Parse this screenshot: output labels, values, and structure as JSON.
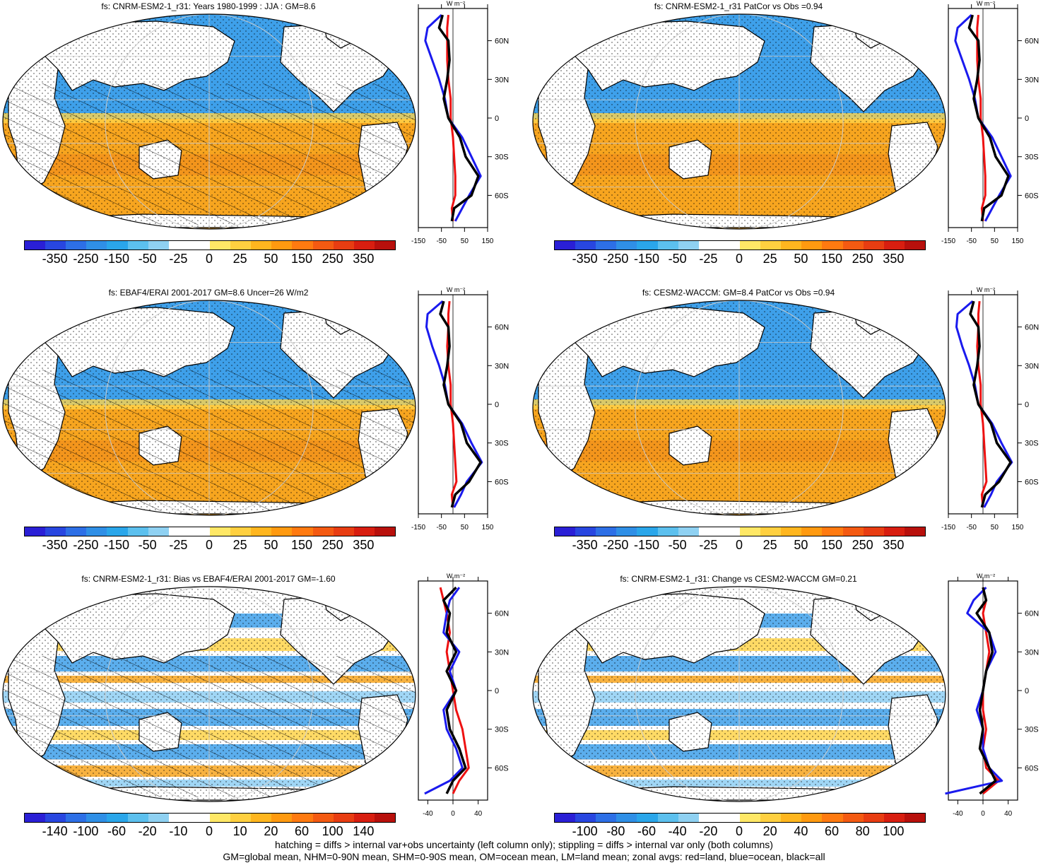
{
  "panels": [
    {
      "title": "fs: CNRM-ESM2-1_r31: Years 1980-1999 : JJA : GM=8.6",
      "cbar_labels": [
        "-350",
        "-250",
        "-150",
        "-50",
        "-25",
        "0",
        "25",
        "50",
        "150",
        "250",
        "350"
      ],
      "zonal_x_ticks": [
        "-150",
        "-50",
        "50",
        "150"
      ],
      "zonal_lat_ticks": [
        "60N",
        "30N",
        "0",
        "30S",
        "60S"
      ],
      "zonal_unit": "W m⁻²",
      "hatching": true,
      "pattern": "mean"
    },
    {
      "title": "fs: CNRM-ESM2-1_r31 PatCor vs Obs =0.94",
      "cbar_labels": [
        "-350",
        "-250",
        "-150",
        "-50",
        "-25",
        "0",
        "25",
        "50",
        "150",
        "250",
        "350"
      ],
      "zonal_x_ticks": [
        "-150",
        "-50",
        "50",
        "150"
      ],
      "zonal_lat_ticks": [
        "60N",
        "30N",
        "0",
        "30S",
        "60S"
      ],
      "zonal_unit": "W m⁻²",
      "hatching": false,
      "pattern": "mean"
    },
    {
      "title": "fs: EBAF4/ERAI 2001-2017 GM=8.6 Uncer=26 W/m2",
      "cbar_labels": [
        "-350",
        "-250",
        "-150",
        "-50",
        "-25",
        "0",
        "25",
        "50",
        "150",
        "250",
        "350"
      ],
      "zonal_x_ticks": [
        "-150",
        "-50",
        "50",
        "150"
      ],
      "zonal_lat_ticks": [
        "60N",
        "30N",
        "0",
        "30S",
        "60S"
      ],
      "zonal_unit": "W m⁻²",
      "hatching": true,
      "pattern": "mean"
    },
    {
      "title": "fs: CESM2-WACCM: GM=8.4 PatCor vs Obs =0.94",
      "cbar_labels": [
        "-350",
        "-250",
        "-150",
        "-50",
        "-25",
        "0",
        "25",
        "50",
        "150",
        "250",
        "350"
      ],
      "zonal_x_ticks": [
        "-150",
        "-50",
        "50",
        "150"
      ],
      "zonal_lat_ticks": [
        "60N",
        "30N",
        "0",
        "30S",
        "60S"
      ],
      "zonal_unit": "W m⁻²",
      "hatching": false,
      "pattern": "mean"
    },
    {
      "title": "fs: CNRM-ESM2-1_r31: Bias vs EBAF4/ERAI 2001-2017 GM=-1.60",
      "cbar_labels": [
        "-140",
        "-100",
        "-60",
        "-20",
        "-10",
        "0",
        "10",
        "20",
        "60",
        "100",
        "140"
      ],
      "zonal_x_ticks": [
        "-40",
        "0",
        "40"
      ],
      "zonal_lat_ticks": [
        "60N",
        "30N",
        "0",
        "30S",
        "60S"
      ],
      "zonal_unit": "W m⁻²",
      "hatching": true,
      "pattern": "diff"
    },
    {
      "title": "fs: CNRM-ESM2-1_r31: Change vs CESM2-WACCM GM=0.21",
      "cbar_labels": [
        "-100",
        "-80",
        "-60",
        "-40",
        "-20",
        "0",
        "20",
        "40",
        "60",
        "80",
        "100"
      ],
      "zonal_x_ticks": [
        "-40",
        "0",
        "40"
      ],
      "zonal_lat_ticks": [
        "60N",
        "30N",
        "0",
        "30S",
        "60S"
      ],
      "zonal_unit": "W m⁻²",
      "hatching": false,
      "pattern": "diff"
    }
  ],
  "colorbar_colors": [
    "#2a1fd6",
    "#2846e0",
    "#2d6fe6",
    "#2f8fe6",
    "#2aa6ea",
    "#5cc0ee",
    "#8fd1f2",
    "#ffffff",
    "#ffffff",
    "#ffe866",
    "#ffd040",
    "#ffb61f",
    "#ff9a10",
    "#ff7a10",
    "#f45a12",
    "#e83d12",
    "#d81e10",
    "#b8100c"
  ],
  "colors": {
    "land": "#ffffff",
    "neg": "#3ea0ea",
    "neg_light": "#8fcff3",
    "pos": "#f7a51f",
    "pos_light": "#ffd34a",
    "red_line": "#ee1111",
    "blue_line": "#1a1aee",
    "black_line": "#000000"
  },
  "footer": [
    "hatching = diffs > internal var+obs uncertainty (left column only); stippling = diffs > internal var only (both columns)",
    "GM=global mean, NHM=0-90N mean, SHM=0-90S mean, OM=ocean mean, LM=land mean; zonal avgs: red=land, blue=ocean, black=all"
  ],
  "chart_data": [
    {
      "type": "heatmap",
      "title": "fs: CNRM-ESM2-1_r31: Years 1980-1999 : JJA : GM=8.6",
      "colorbar": [
        -350,
        -250,
        -150,
        -50,
        -25,
        0,
        25,
        50,
        150,
        250,
        350
      ],
      "zonal": {
        "lat": [
          80,
          70,
          60,
          45,
          30,
          15,
          0,
          -15,
          -30,
          -45,
          -60,
          -70,
          -80
        ],
        "all": [
          -45,
          -60,
          -20,
          -15,
          -25,
          -40,
          -20,
          30,
          55,
          110,
          80,
          5,
          -5
        ],
        "ocean": [
          -50,
          -110,
          -120,
          -90,
          -60,
          -35,
          -20,
          40,
          80,
          120,
          70,
          40,
          10
        ],
        "land": [
          -20,
          -25,
          -25,
          -25,
          -20,
          -10,
          -10,
          0,
          5,
          10,
          10,
          -5,
          0
        ]
      }
    },
    {
      "type": "heatmap",
      "title": "fs: CNRM-ESM2-1_r31 PatCor vs Obs =0.94",
      "colorbar": [
        -350,
        -250,
        -150,
        -50,
        -25,
        0,
        25,
        50,
        150,
        250,
        350
      ],
      "zonal": {
        "lat": [
          80,
          70,
          60,
          45,
          30,
          15,
          0,
          -15,
          -30,
          -45,
          -60,
          -70,
          -80
        ],
        "all": [
          -45,
          -60,
          -20,
          -15,
          -25,
          -40,
          -20,
          30,
          55,
          110,
          80,
          5,
          -5
        ],
        "ocean": [
          -50,
          -110,
          -120,
          -90,
          -60,
          -35,
          -20,
          40,
          80,
          120,
          70,
          40,
          10
        ],
        "land": [
          -20,
          -25,
          -25,
          -25,
          -20,
          -10,
          -10,
          0,
          5,
          10,
          10,
          -5,
          0
        ]
      }
    },
    {
      "type": "heatmap",
      "title": "fs: EBAF4/ERAI 2001-2017 GM=8.6 Uncer=26 W/m2",
      "colorbar": [
        -350,
        -250,
        -150,
        -50,
        -25,
        0,
        25,
        50,
        150,
        250,
        350
      ],
      "zonal": {
        "lat": [
          80,
          70,
          60,
          45,
          30,
          15,
          0,
          -15,
          -30,
          -45,
          -60,
          -70,
          -80
        ],
        "all": [
          -40,
          -55,
          -20,
          -15,
          -25,
          -40,
          -20,
          35,
          60,
          120,
          70,
          10,
          -5
        ],
        "ocean": [
          -45,
          -110,
          -115,
          -90,
          -60,
          -35,
          -20,
          40,
          80,
          125,
          60,
          35,
          5
        ],
        "land": [
          -15,
          -20,
          -20,
          -25,
          -20,
          -10,
          -10,
          0,
          5,
          10,
          15,
          -5,
          0
        ]
      }
    },
    {
      "type": "heatmap",
      "title": "fs: CESM2-WACCM: GM=8.4 PatCor vs Obs =0.94",
      "colorbar": [
        -350,
        -250,
        -150,
        -50,
        -25,
        0,
        25,
        50,
        150,
        250,
        350
      ],
      "zonal": {
        "lat": [
          80,
          70,
          60,
          45,
          30,
          15,
          0,
          -15,
          -30,
          -45,
          -60,
          -70,
          -80
        ],
        "all": [
          -40,
          -55,
          -20,
          -15,
          -25,
          -40,
          -20,
          35,
          60,
          120,
          70,
          10,
          -5
        ],
        "ocean": [
          -45,
          -110,
          -115,
          -90,
          -60,
          -35,
          -20,
          40,
          80,
          125,
          60,
          35,
          5
        ],
        "land": [
          -15,
          -20,
          -20,
          -25,
          -20,
          -10,
          -10,
          0,
          5,
          10,
          15,
          -5,
          0
        ]
      }
    },
    {
      "type": "heatmap",
      "title": "fs: CNRM-ESM2-1_r31: Bias vs EBAF4/ERAI 2001-2017 GM=-1.60",
      "colorbar": [
        -140,
        -100,
        -60,
        -20,
        -10,
        0,
        10,
        20,
        60,
        100,
        140
      ],
      "zonal": {
        "lat": [
          80,
          70,
          60,
          45,
          30,
          15,
          0,
          -15,
          -30,
          -45,
          -60,
          -70,
          -80
        ],
        "all": [
          5,
          -15,
          -5,
          -10,
          5,
          -10,
          5,
          -10,
          -5,
          10,
          20,
          0,
          -10
        ],
        "ocean": [
          10,
          -5,
          -10,
          -15,
          10,
          -5,
          5,
          -15,
          -10,
          5,
          15,
          -5,
          -45
        ],
        "land": [
          -20,
          -15,
          -10,
          -5,
          -10,
          -5,
          0,
          5,
          15,
          20,
          25,
          10,
          0
        ]
      }
    },
    {
      "type": "heatmap",
      "title": "fs: CNRM-ESM2-1_r31: Change vs CESM2-WACCM GM=0.21",
      "colorbar": [
        -100,
        -80,
        -60,
        -40,
        -20,
        0,
        20,
        40,
        60,
        80,
        100
      ],
      "zonal": {
        "lat": [
          80,
          70,
          60,
          45,
          30,
          15,
          0,
          -15,
          -30,
          -45,
          -60,
          -70,
          -80
        ],
        "all": [
          0,
          5,
          -10,
          10,
          15,
          5,
          0,
          -5,
          0,
          -5,
          10,
          20,
          -5
        ],
        "ocean": [
          5,
          -15,
          -25,
          10,
          20,
          5,
          0,
          -10,
          0,
          0,
          10,
          30,
          -60
        ],
        "land": [
          0,
          5,
          0,
          5,
          10,
          5,
          0,
          0,
          5,
          0,
          5,
          25,
          0
        ]
      }
    }
  ]
}
